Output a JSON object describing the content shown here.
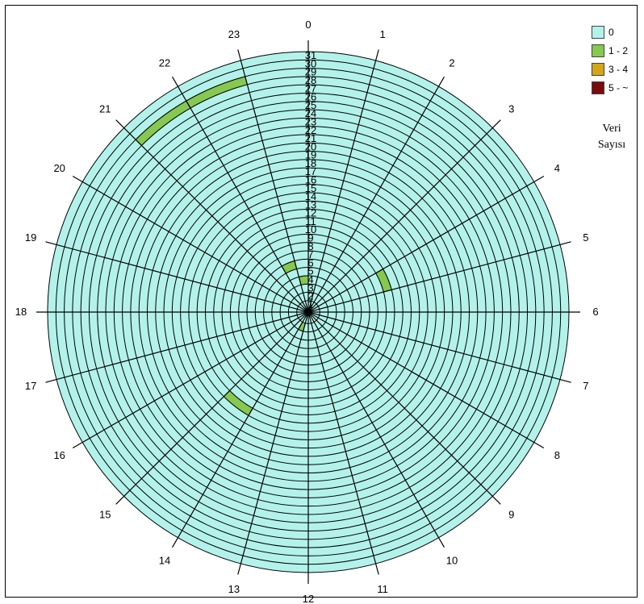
{
  "chart_data": {
    "type": "polar-heatmap",
    "angular_labels": [
      "0",
      "1",
      "2",
      "3",
      "4",
      "5",
      "6",
      "7",
      "8",
      "9",
      "10",
      "11",
      "12",
      "13",
      "14",
      "15",
      "16",
      "17",
      "18",
      "19",
      "20",
      "21",
      "22",
      "23"
    ],
    "radial_labels": [
      "1",
      "2",
      "3",
      "4",
      "5",
      "6",
      "7",
      "8",
      "9",
      "10",
      "11",
      "12",
      "13",
      "14",
      "15",
      "16",
      "17",
      "18",
      "19",
      "20",
      "21",
      "22",
      "23",
      "24",
      "25",
      "26",
      "27",
      "28",
      "29",
      "30",
      "31"
    ],
    "legend_title": [
      "Veri",
      "Sayısı"
    ],
    "legend": [
      {
        "label": "0",
        "color": "#b3f2ea"
      },
      {
        "label": "1 - 2",
        "color": "#86c850"
      },
      {
        "label": "3 - 4",
        "color": "#d4a616"
      },
      {
        "label": "5 - ~",
        "color": "#7a0c0c"
      }
    ],
    "background_category": "0",
    "cells": [
      {
        "hour": 21,
        "ring": 29,
        "category": "1 - 2"
      },
      {
        "hour": 22,
        "ring": 29,
        "category": "1 - 2"
      },
      {
        "hour": 22,
        "ring": 6,
        "category": "1 - 2"
      },
      {
        "hour": 23,
        "ring": 4,
        "category": "1 - 2"
      },
      {
        "hour": 4,
        "ring": 10,
        "category": "1 - 2"
      },
      {
        "hour": 13,
        "ring": 2,
        "category": "1 - 2"
      },
      {
        "hour": 14,
        "ring": 14,
        "category": "1 - 2"
      }
    ]
  }
}
